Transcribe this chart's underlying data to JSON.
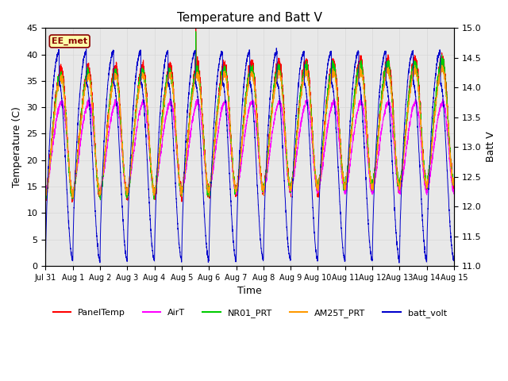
{
  "title": "Temperature and Batt V",
  "xlabel": "Time",
  "ylabel_left": "Temperature (C)",
  "ylabel_right": "Batt V",
  "annotation": "EE_met",
  "ylim_left": [
    0,
    45
  ],
  "ylim_right": [
    11.0,
    15.0
  ],
  "xlim": [
    0,
    15
  ],
  "xtick_labels": [
    "Jul 31",
    "Aug 1",
    "Aug 2",
    "Aug 3",
    "Aug 4",
    "Aug 5",
    "Aug 6",
    "Aug 7",
    "Aug 8",
    "Aug 9",
    "Aug 10",
    "Aug 11",
    "Aug 12",
    "Aug 13",
    "Aug 14",
    "Aug 15"
  ],
  "yticks_left": [
    0,
    5,
    10,
    15,
    20,
    25,
    30,
    35,
    40,
    45
  ],
  "yticks_right": [
    11.0,
    11.5,
    12.0,
    12.5,
    13.0,
    13.5,
    14.0,
    14.5,
    15.0
  ],
  "grid_color": "#d8d8d8",
  "bg_color": "#e8e8e8",
  "series": [
    {
      "name": "PanelTemp",
      "color": "#ff0000"
    },
    {
      "name": "AirT",
      "color": "#ff00ff"
    },
    {
      "name": "NR01_PRT",
      "color": "#00cc00"
    },
    {
      "name": "AM25T_PRT",
      "color": "#ff9900"
    },
    {
      "name": "batt_volt",
      "color": "#0000cc"
    }
  ],
  "n_days": 15,
  "pts_per_day": 288
}
